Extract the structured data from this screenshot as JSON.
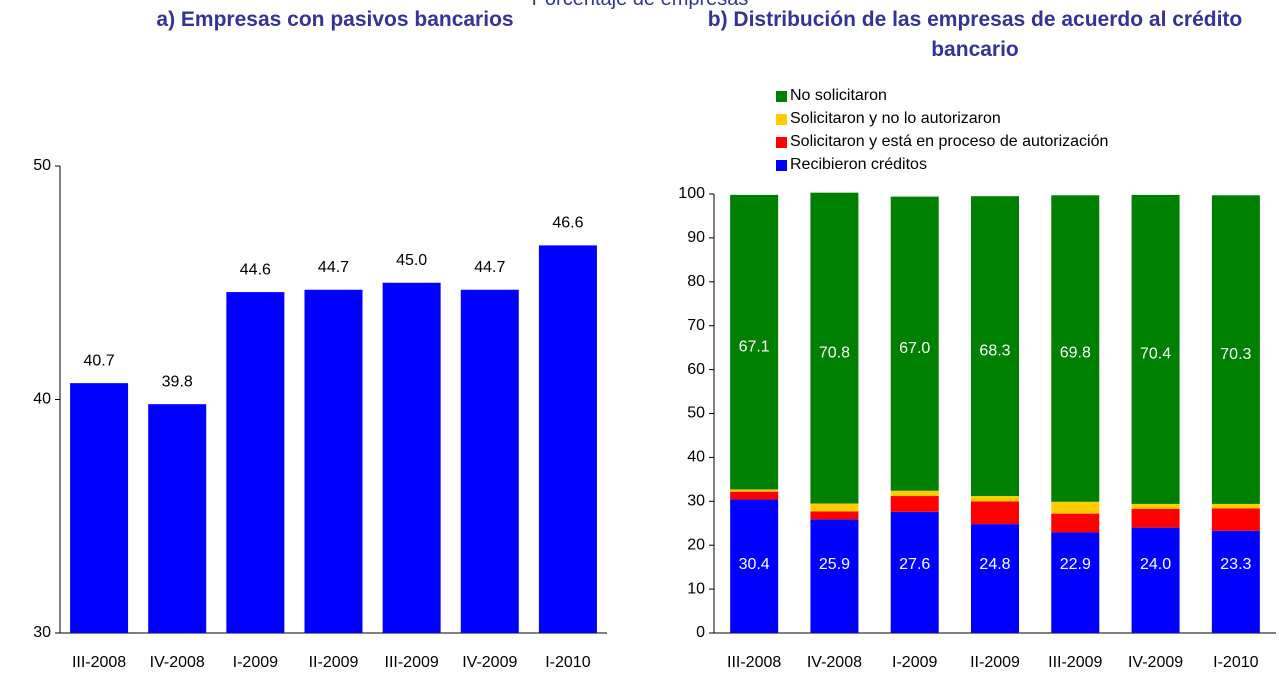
{
  "subtitle": "Porcentaje de empresas",
  "chart_data": [
    {
      "type": "bar",
      "title": "a) Empresas con pasivos bancarios",
      "categories": [
        "III-2008",
        "IV-2008",
        "I-2009",
        "II-2009",
        "III-2009",
        "IV-2009",
        "I-2010"
      ],
      "values": [
        40.7,
        39.8,
        44.6,
        44.7,
        45.0,
        44.7,
        46.6
      ],
      "value_labels": [
        "40.7",
        "39.8",
        "44.6",
        "44.7",
        "45.0",
        "44.7",
        "46.6"
      ],
      "color": "#0000ff",
      "ylim": [
        30,
        50
      ],
      "yticks": [
        30,
        40,
        50
      ]
    },
    {
      "type": "stacked_bar",
      "title": "b) Distribución de las empresas de acuerdo al crédito bancario",
      "categories": [
        "III-2008",
        "IV-2008",
        "I-2009",
        "II-2009",
        "III-2009",
        "IV-2009",
        "I-2010"
      ],
      "series": [
        {
          "name": "Recibieron créditos",
          "color": "#0000ff",
          "values": [
            30.4,
            25.9,
            27.6,
            24.8,
            22.9,
            24.0,
            23.3
          ],
          "value_labels": [
            "30.4",
            "25.9",
            "27.6",
            "24.8",
            "22.9",
            "24.0",
            "23.3"
          ]
        },
        {
          "name": "Solicitaron y está en proceso de autorización",
          "color": "#ff0000",
          "values": [
            1.8,
            1.8,
            3.6,
            5.2,
            4.3,
            4.3,
            5.1
          ]
        },
        {
          "name": "Solicitaron y no lo autorizaron",
          "color": "#ffcc00",
          "values": [
            0.5,
            1.8,
            1.2,
            1.2,
            2.7,
            1.1,
            1.0
          ]
        },
        {
          "name": "No solicitaron",
          "color": "#008000",
          "values": [
            67.1,
            70.8,
            67.0,
            68.3,
            69.8,
            70.4,
            70.3
          ],
          "value_labels": [
            "67.1",
            "70.8",
            "67.0",
            "68.3",
            "69.8",
            "70.4",
            "70.3"
          ]
        }
      ],
      "ylim": [
        0,
        100
      ],
      "yticks": [
        0,
        10,
        20,
        30,
        40,
        50,
        60,
        70,
        80,
        90,
        100
      ]
    }
  ]
}
